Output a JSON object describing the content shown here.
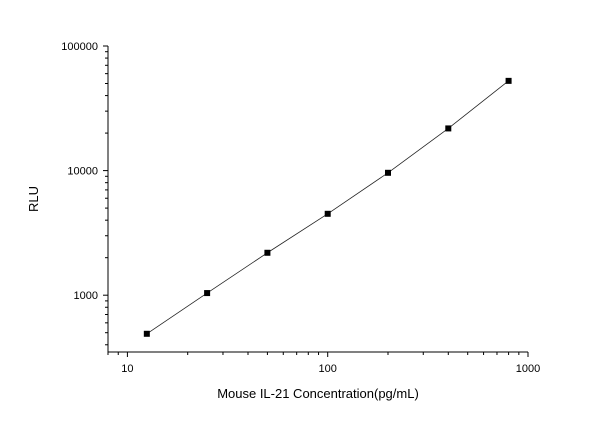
{
  "chart_data": {
    "type": "scatter",
    "title": "",
    "xlabel": "Mouse IL-21 Concentration(pg/mL)",
    "ylabel": "RLU",
    "xscale": "log",
    "yscale": "log",
    "xlim": [
      8,
      1000
    ],
    "ylim": [
      350,
      100000
    ],
    "grid": false,
    "legend": "none",
    "x_ticks": [
      10,
      100,
      1000
    ],
    "x_tick_labels": [
      "10",
      "100",
      "1000"
    ],
    "y_ticks": [
      1000,
      10000,
      100000
    ],
    "y_tick_labels": [
      "1000",
      "10000",
      "100000"
    ],
    "series": [
      {
        "x": [
          12.5,
          25,
          50,
          100,
          200,
          400,
          800
        ],
        "y": [
          490,
          1040,
          2190,
          4500,
          9600,
          21800,
          52500
        ],
        "marker": "square",
        "color": "#000000",
        "fit_line": true
      }
    ]
  }
}
